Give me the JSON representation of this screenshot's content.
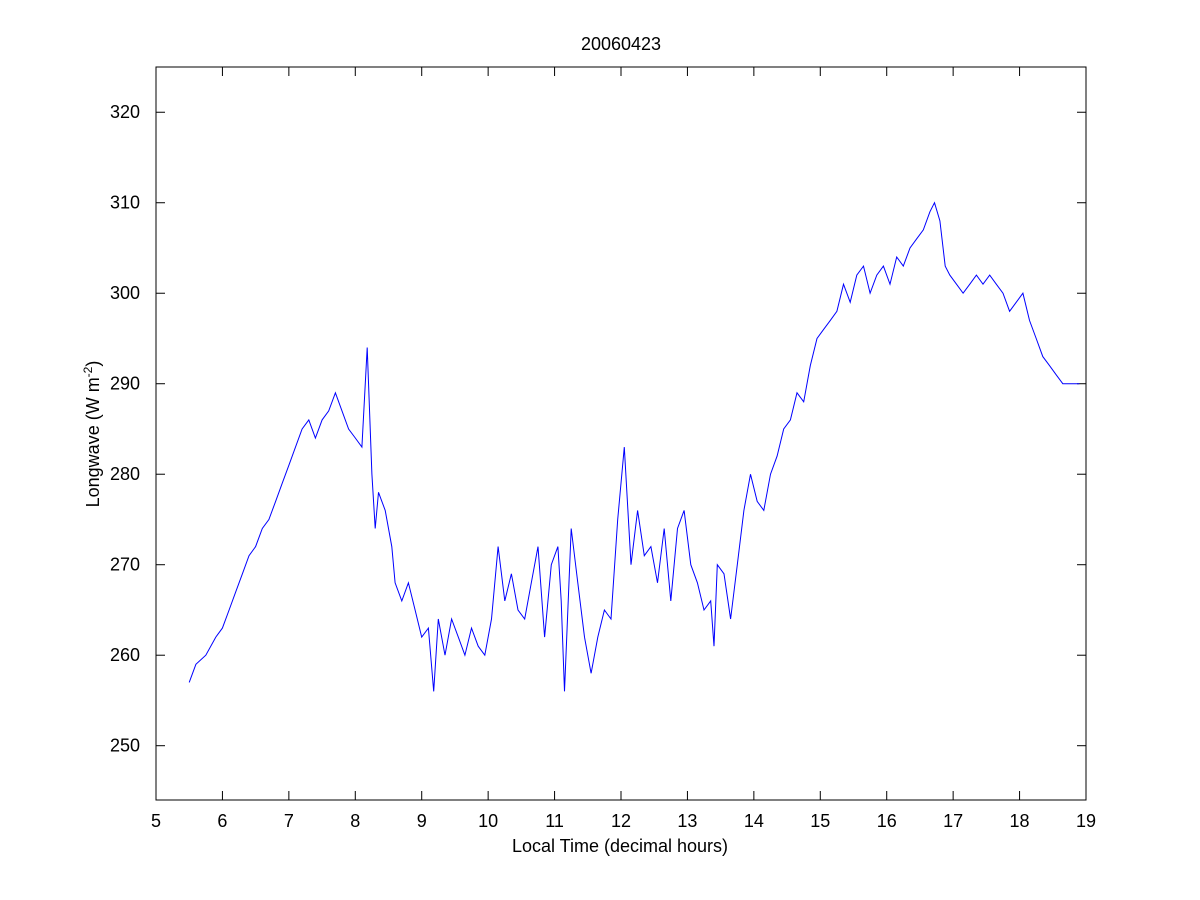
{
  "chart_data": {
    "type": "line",
    "title": "20060423",
    "xlabel": "Local Time (decimal hours)",
    "ylabel": "Longwave (W m",
    "ylabel_superscript": "-2",
    "ylabel_suffix": ")",
    "xlim": [
      5,
      19
    ],
    "ylim": [
      244,
      325
    ],
    "xticks": [
      5,
      6,
      7,
      8,
      9,
      10,
      11,
      12,
      13,
      14,
      15,
      16,
      17,
      18,
      19
    ],
    "yticks": [
      250,
      260,
      270,
      280,
      290,
      300,
      310,
      320
    ],
    "grid": false,
    "line_color": "#0000ff",
    "series": [
      {
        "x": [
          5.5,
          5.6,
          5.75,
          5.9,
          6.0,
          6.1,
          6.2,
          6.3,
          6.4,
          6.5,
          6.6,
          6.7,
          6.8,
          6.9,
          7.0,
          7.1,
          7.2,
          7.3,
          7.4,
          7.5,
          7.6,
          7.7,
          7.8,
          7.9,
          8.0,
          8.1,
          8.18,
          8.25,
          8.3,
          8.35,
          8.45,
          8.55,
          8.6,
          8.7,
          8.8,
          8.9,
          9.0,
          9.1,
          9.18,
          9.25,
          9.35,
          9.45,
          9.55,
          9.65,
          9.75,
          9.85,
          9.95,
          10.05,
          10.15,
          10.25,
          10.35,
          10.45,
          10.55,
          10.65,
          10.75,
          10.85,
          10.95,
          11.05,
          11.1,
          11.15,
          11.25,
          11.35,
          11.45,
          11.55,
          11.65,
          11.75,
          11.85,
          11.95,
          12.05,
          12.15,
          12.25,
          12.35,
          12.45,
          12.55,
          12.65,
          12.75,
          12.85,
          12.95,
          13.05,
          13.15,
          13.25,
          13.35,
          13.4,
          13.45,
          13.55,
          13.65,
          13.75,
          13.85,
          13.95,
          14.05,
          14.15,
          14.25,
          14.35,
          14.45,
          14.55,
          14.65,
          14.75,
          14.85,
          14.95,
          15.05,
          15.15,
          15.25,
          15.35,
          15.45,
          15.55,
          15.65,
          15.75,
          15.85,
          15.95,
          16.05,
          16.15,
          16.25,
          16.35,
          16.45,
          16.55,
          16.65,
          16.72,
          16.8,
          16.88,
          16.95,
          17.05,
          17.15,
          17.25,
          17.35,
          17.45,
          17.55,
          17.65,
          17.75,
          17.85,
          17.95,
          18.05,
          18.15,
          18.25,
          18.35,
          18.45,
          18.55,
          18.65,
          18.75,
          18.85,
          18.9
        ],
        "y": [
          257,
          259,
          260,
          262,
          263,
          265,
          267,
          269,
          271,
          272,
          274,
          275,
          277,
          279,
          281,
          283,
          285,
          286,
          284,
          286,
          287,
          289,
          287,
          285,
          284,
          283,
          294,
          280,
          274,
          278,
          276,
          272,
          268,
          266,
          268,
          265,
          262,
          263,
          256,
          264,
          260,
          264,
          262,
          260,
          263,
          261,
          260,
          264,
          272,
          266,
          269,
          265,
          264,
          268,
          272,
          262,
          270,
          272,
          266,
          256,
          274,
          268,
          262,
          258,
          262,
          265,
          264,
          275,
          283,
          270,
          276,
          271,
          272,
          268,
          274,
          266,
          274,
          276,
          270,
          268,
          265,
          266,
          261,
          270,
          269,
          264,
          270,
          276,
          280,
          277,
          276,
          280,
          282,
          285,
          286,
          289,
          288,
          292,
          295,
          296,
          297,
          298,
          301,
          299,
          302,
          303,
          300,
          302,
          303,
          301,
          304,
          303,
          305,
          306,
          307,
          309,
          310,
          308,
          303,
          302,
          301,
          300,
          301,
          302,
          301,
          302,
          301,
          300,
          298,
          299,
          300,
          297,
          295,
          293,
          292,
          291,
          290,
          290,
          290,
          290
        ]
      }
    ]
  }
}
